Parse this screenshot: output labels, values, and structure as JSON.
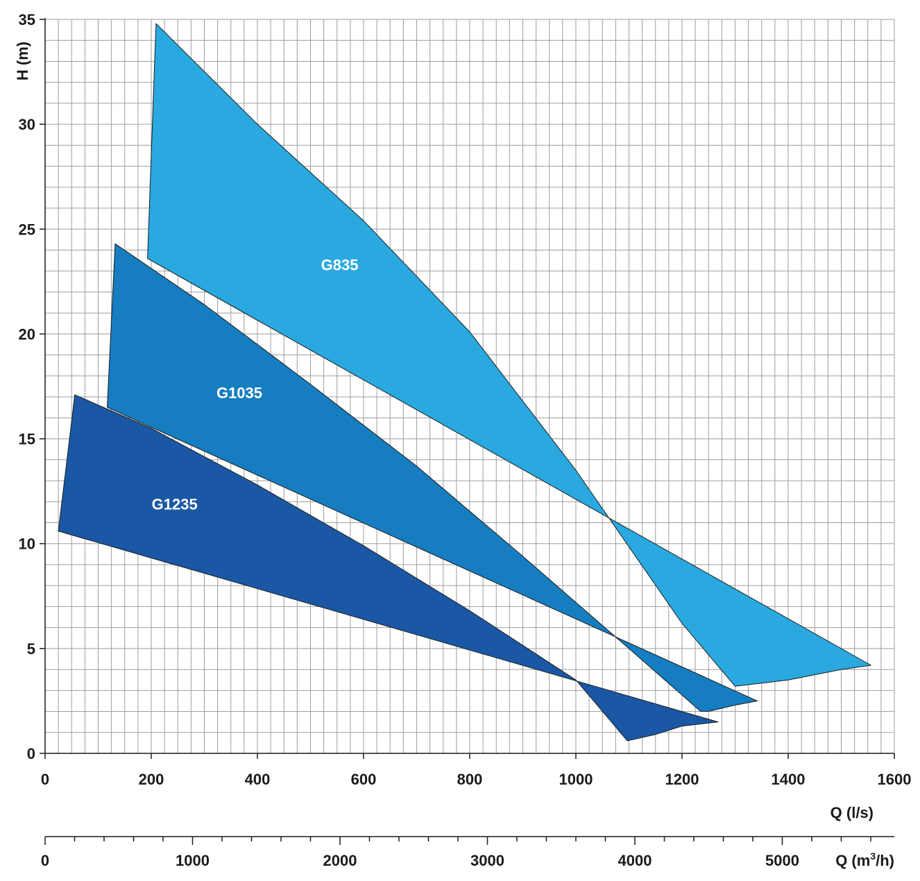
{
  "chart_data": {
    "type": "area",
    "xlabel": "Q (l/s)",
    "ylabel": "H (m)",
    "xlim": [
      0,
      1600
    ],
    "ylim": [
      0,
      35
    ],
    "x_ticks": [
      0,
      200,
      400,
      600,
      800,
      1000,
      1200,
      1400,
      1600
    ],
    "y_ticks": [
      0,
      5,
      10,
      15,
      20,
      25,
      30,
      35
    ],
    "grid": true,
    "secondary_x_axis": {
      "label_main": "Q (m",
      "label_sup": "3",
      "label_end": "/h)",
      "ticks": [
        0,
        1000,
        2000,
        3000,
        4000,
        5000
      ]
    },
    "series": [
      {
        "name": "G835",
        "color": "#29a9e0",
        "label_at": [
          555,
          23.3
        ],
        "outline": [
          [
            193,
            23.6
          ],
          [
            209,
            34.8
          ],
          [
            400,
            30.0
          ],
          [
            600,
            25.4
          ],
          [
            800,
            20.1
          ],
          [
            1000,
            13.5
          ],
          [
            1200,
            6.2
          ],
          [
            1300,
            3.2
          ],
          [
            1400,
            3.5
          ],
          [
            1500,
            4.0
          ],
          [
            1556,
            4.2
          ]
        ]
      },
      {
        "name": "G1035",
        "color": "#167dc1",
        "label_at": [
          366,
          17.2
        ],
        "outline": [
          [
            117,
            16.5
          ],
          [
            132,
            24.3
          ],
          [
            300,
            21.4
          ],
          [
            500,
            17.6
          ],
          [
            700,
            13.7
          ],
          [
            900,
            9.4
          ],
          [
            1100,
            5.0
          ],
          [
            1235,
            2.0
          ],
          [
            1250,
            2.0
          ],
          [
            1300,
            2.3
          ],
          [
            1342,
            2.5
          ]
        ]
      },
      {
        "name": "G1235",
        "color": "#1a58a5",
        "label_at": [
          244,
          11.9
        ],
        "outline": [
          [
            25,
            10.6
          ],
          [
            56,
            17.1
          ],
          [
            200,
            15.5
          ],
          [
            400,
            12.8
          ],
          [
            600,
            9.9
          ],
          [
            800,
            6.8
          ],
          [
            1000,
            3.5
          ],
          [
            1097,
            0.6
          ],
          [
            1150,
            0.9
          ],
          [
            1200,
            1.3
          ],
          [
            1268,
            1.5
          ]
        ]
      }
    ]
  }
}
